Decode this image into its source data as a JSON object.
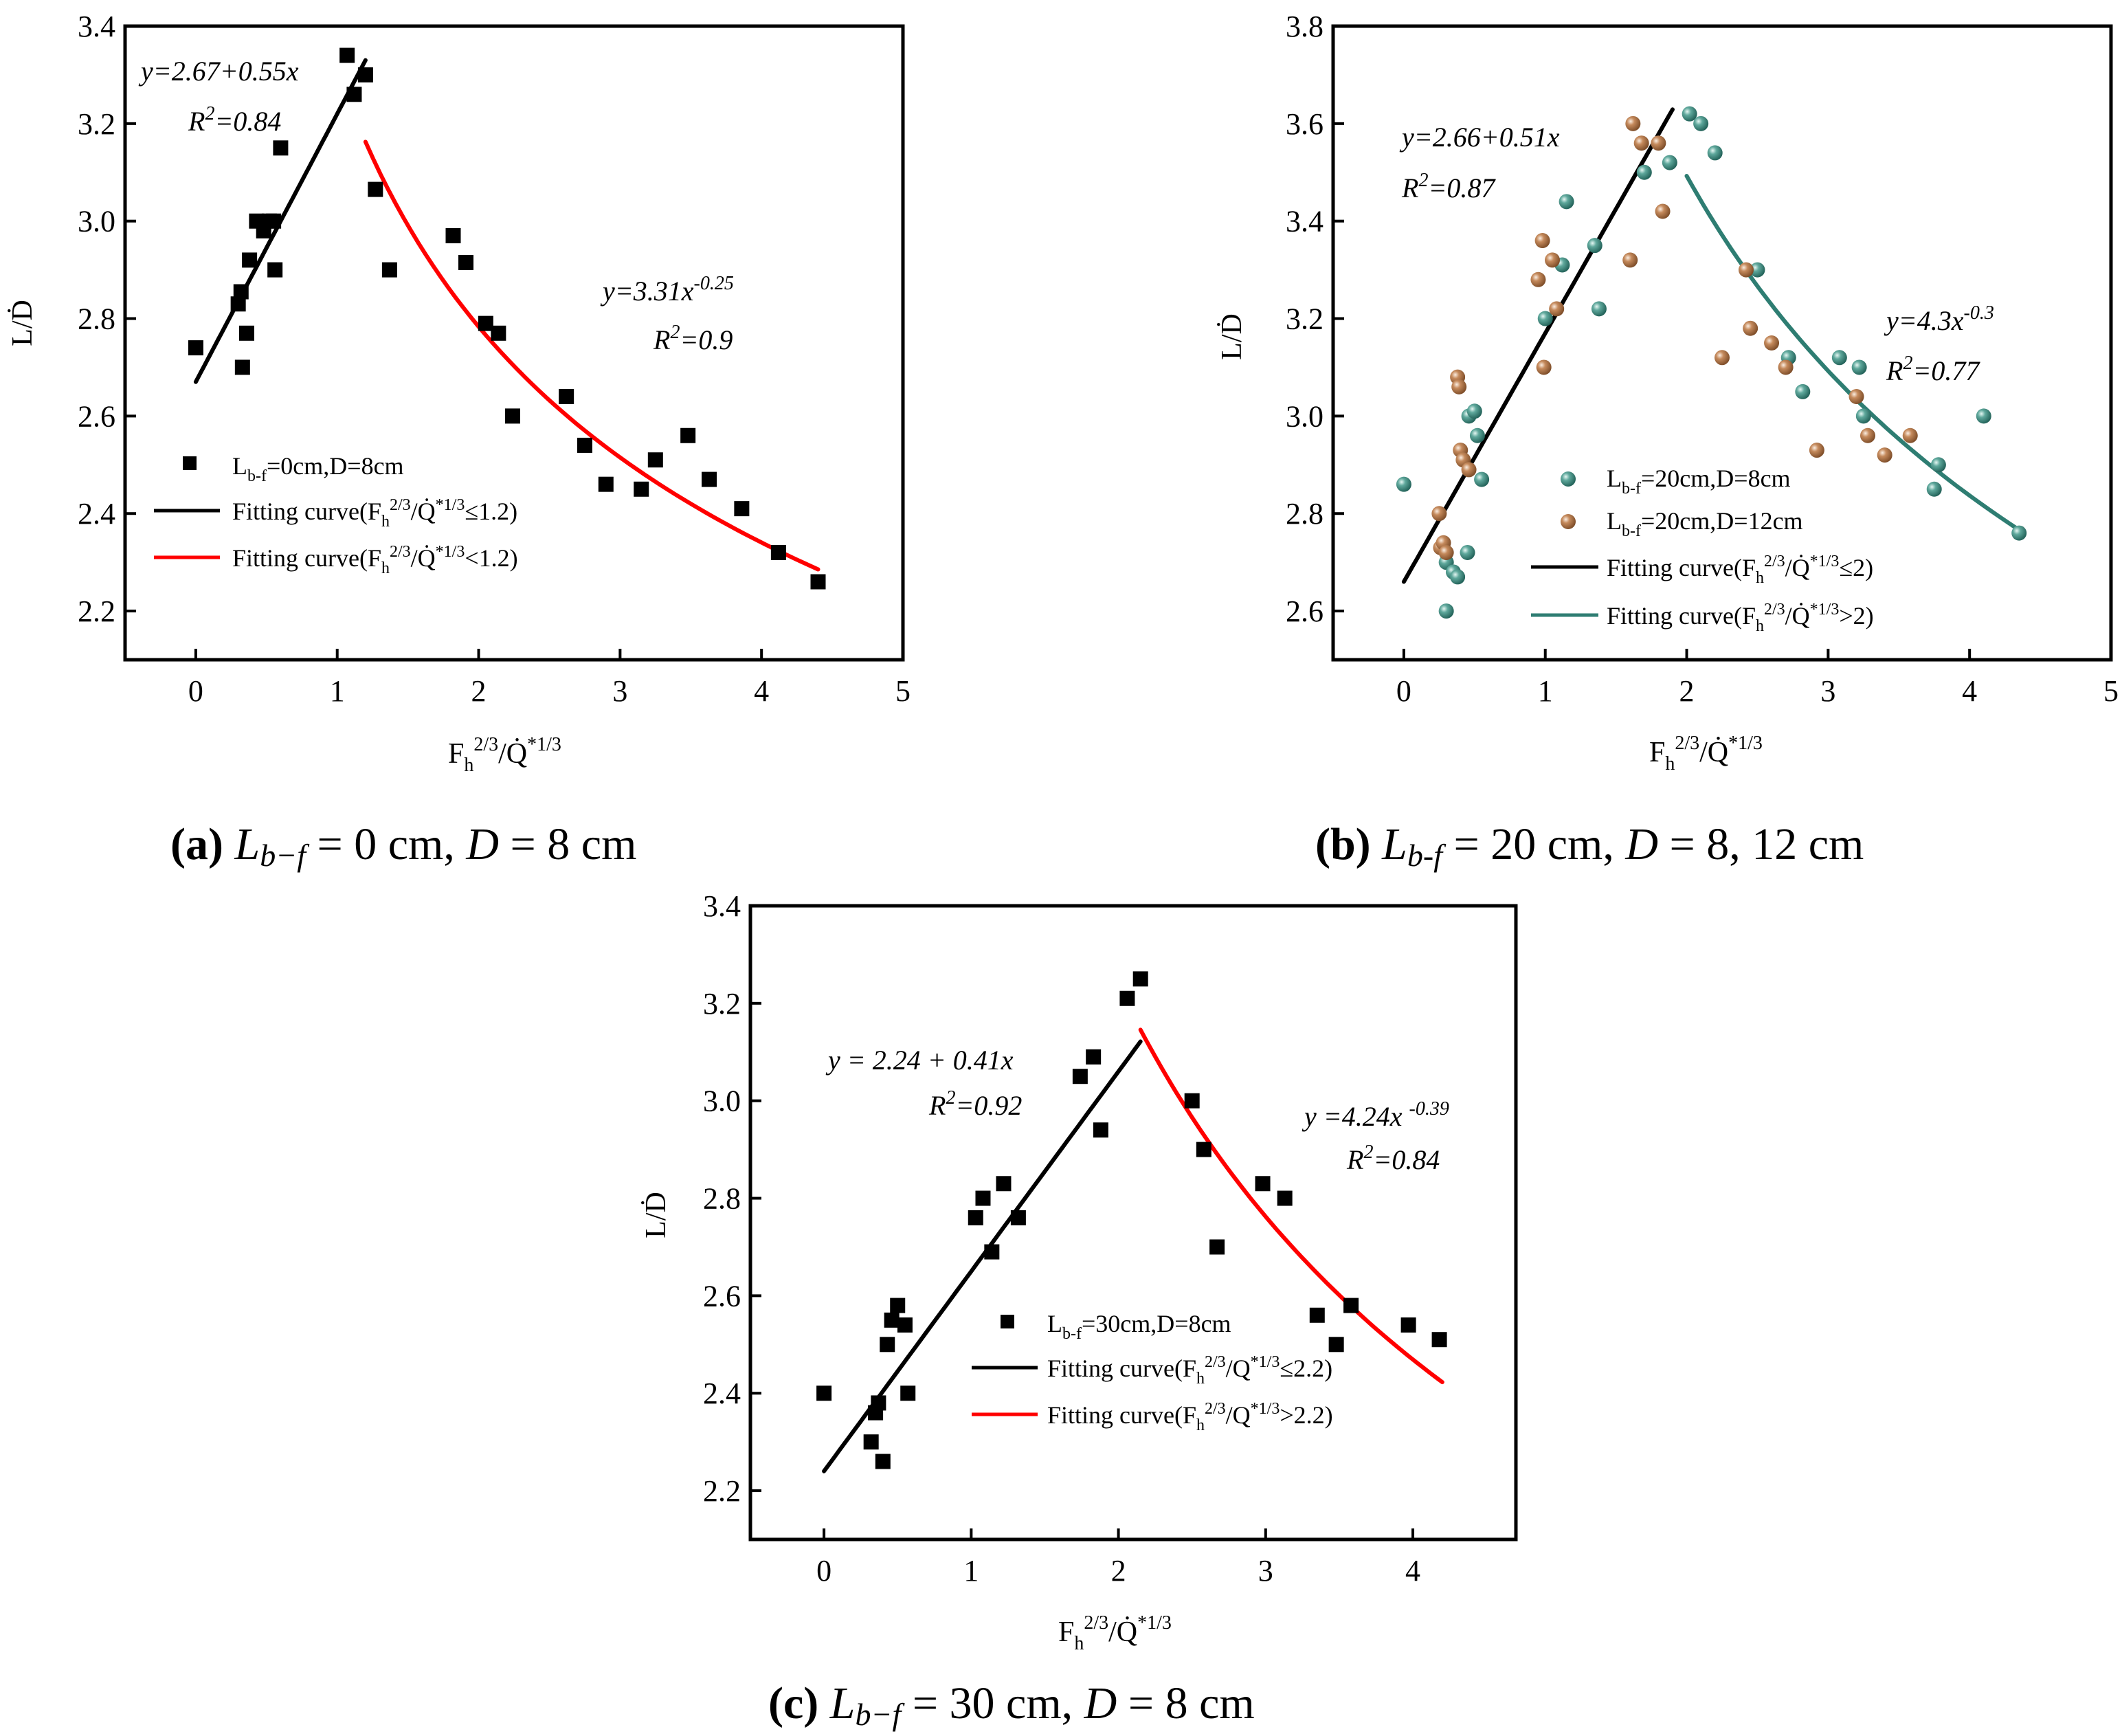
{
  "chart_data": [
    {
      "id": "a",
      "type": "scatter",
      "xlabel": "F_h^{2/3}/Q̇^{*1/3}",
      "ylabel": "L/Ḋ",
      "xlim": [
        -0.5,
        5
      ],
      "ylim": [
        2.1,
        3.4
      ],
      "xticks": [
        0,
        1,
        2,
        3,
        4,
        5
      ],
      "yticks": [
        2.2,
        2.4,
        2.6,
        2.8,
        3.0,
        3.2,
        3.4
      ],
      "xtick_labels": [
        "0",
        "1",
        "2",
        "3",
        "4",
        "5"
      ],
      "ytick_labels": [
        "2.2",
        "2.4",
        "2.6",
        "2.8",
        "3.0",
        "3.2",
        "3.4"
      ],
      "series": [
        {
          "name": "L_b-f=0cm,D=8cm",
          "kind": "scatter",
          "marker": "square",
          "color": "#000000",
          "points": [
            [
              0,
              2.74
            ],
            [
              0.3,
              2.83
            ],
            [
              0.32,
              2.855
            ],
            [
              0.33,
              2.7
            ],
            [
              0.36,
              2.77
            ],
            [
              0.38,
              2.92
            ],
            [
              0.43,
              3.0
            ],
            [
              0.48,
              2.98
            ],
            [
              0.52,
              3.0
            ],
            [
              0.55,
              3.0
            ],
            [
              0.56,
              2.9
            ],
            [
              0.6,
              3.15
            ],
            [
              1.07,
              3.34
            ],
            [
              1.12,
              3.26
            ],
            [
              1.2,
              3.3
            ],
            [
              1.27,
              3.065
            ],
            [
              1.37,
              2.9
            ],
            [
              1.82,
              2.97
            ],
            [
              1.91,
              2.915
            ],
            [
              2.05,
              2.79
            ],
            [
              2.14,
              2.77
            ],
            [
              2.24,
              2.6
            ],
            [
              2.62,
              2.64
            ],
            [
              2.75,
              2.54
            ],
            [
              2.9,
              2.46
            ],
            [
              3.15,
              2.45
            ],
            [
              3.25,
              2.51
            ],
            [
              3.48,
              2.56
            ],
            [
              3.63,
              2.47
            ],
            [
              3.86,
              2.41
            ],
            [
              4.12,
              2.32
            ],
            [
              4.4,
              2.26
            ]
          ]
        },
        {
          "name": "Fitting curve(F_h^{2/3}/Q̇^{*1/3}≤1.2)",
          "kind": "linear",
          "a": 2.67,
          "b": 0.55,
          "xrange": [
            0,
            1.2
          ],
          "color": "#000000"
        },
        {
          "name": "Fitting curve(F_h^{2/3}/Q̇^{*1/3}<1.2)",
          "kind": "power",
          "a": 3.31,
          "b": -0.25,
          "xrange": [
            1.2,
            4.4
          ],
          "color": "#ff0000"
        }
      ],
      "annotations": [
        {
          "equation": "y=2.67+0.55x",
          "r2_prefix": "R",
          "r2_value": "=0.84"
        },
        {
          "equation_base": "y=3.31x",
          "equation_exp": "-0.25",
          "r2_prefix": "R",
          "r2_value": "=0.9"
        }
      ],
      "legend": [
        {
          "label": "L",
          "sub": "b-f",
          "rest": "=0cm,D=8cm"
        },
        {
          "label": "Fitting curve(F",
          "sub": "h",
          "sup": "2/3",
          "mid": "/Q̇",
          "sup2": "*1/3",
          "rest": "≤1.2)"
        },
        {
          "label": "Fitting curve(F",
          "sub": "h",
          "sup": "2/3",
          "mid": "/Q̇",
          "sup2": "*1/3",
          "rest": "<1.2)"
        }
      ],
      "caption": {
        "tag": "(a)",
        "text_before": "L",
        "sub": "b−f",
        "text_after": " = 0 cm, ",
        "var": "D",
        "text_end": " = 8 cm"
      }
    },
    {
      "id": "b",
      "type": "scatter",
      "xlabel": "F_h^{2/3}/Q̇^{*1/3}",
      "ylabel": "L/Ḋ",
      "xlim": [
        -0.5,
        5
      ],
      "ylim": [
        2.5,
        3.8
      ],
      "xticks": [
        0,
        1,
        2,
        3,
        4,
        5
      ],
      "yticks": [
        2.6,
        2.8,
        3.0,
        3.2,
        3.4,
        3.6,
        3.8
      ],
      "xtick_labels": [
        "0",
        "1",
        "2",
        "3",
        "4",
        "5"
      ],
      "ytick_labels": [
        "2.6",
        "2.8",
        "3.0",
        "3.2",
        "3.4",
        "3.6",
        "3.8"
      ],
      "series": [
        {
          "name": "L_b-f=20cm,D=8cm",
          "kind": "scatter",
          "marker": "ball",
          "color": "#2e7d72",
          "points": [
            [
              0,
              2.86
            ],
            [
              0.3,
              2.6
            ],
            [
              0.3,
              2.7
            ],
            [
              0.35,
              2.68
            ],
            [
              0.38,
              2.67
            ],
            [
              0.45,
              2.72
            ],
            [
              0.46,
              3.0
            ],
            [
              0.5,
              3.01
            ],
            [
              0.52,
              2.96
            ],
            [
              0.55,
              2.87
            ],
            [
              1.0,
              3.2
            ],
            [
              1.12,
              3.31
            ],
            [
              1.15,
              3.44
            ],
            [
              1.35,
              3.35
            ],
            [
              1.38,
              3.22
            ],
            [
              1.7,
              3.5
            ],
            [
              1.88,
              3.52
            ],
            [
              2.02,
              3.62
            ],
            [
              2.1,
              3.6
            ],
            [
              2.2,
              3.54
            ],
            [
              2.5,
              3.3
            ],
            [
              2.72,
              3.12
            ],
            [
              2.82,
              3.05
            ],
            [
              3.08,
              3.12
            ],
            [
              3.22,
              3.1
            ],
            [
              3.25,
              3.0
            ],
            [
              3.75,
              2.85
            ],
            [
              3.78,
              2.9
            ],
            [
              4.1,
              3.0
            ],
            [
              4.35,
              2.76
            ]
          ]
        },
        {
          "name": "L_b-f=20cm,D=12cm",
          "kind": "scatter",
          "marker": "ball",
          "color": "#a06a42",
          "points": [
            [
              0.25,
              2.8
            ],
            [
              0.26,
              2.73
            ],
            [
              0.28,
              2.74
            ],
            [
              0.3,
              2.72
            ],
            [
              0.38,
              3.08
            ],
            [
              0.39,
              3.06
            ],
            [
              0.4,
              2.93
            ],
            [
              0.42,
              2.91
            ],
            [
              0.46,
              2.89
            ],
            [
              0.95,
              3.28
            ],
            [
              0.98,
              3.36
            ],
            [
              0.99,
              3.1
            ],
            [
              1.05,
              3.32
            ],
            [
              1.08,
              3.22
            ],
            [
              1.6,
              3.32
            ],
            [
              1.62,
              3.6
            ],
            [
              1.68,
              3.56
            ],
            [
              1.8,
              3.56
            ],
            [
              1.83,
              3.42
            ],
            [
              2.25,
              3.12
            ],
            [
              2.42,
              3.3
            ],
            [
              2.45,
              3.18
            ],
            [
              2.6,
              3.15
            ],
            [
              2.7,
              3.1
            ],
            [
              2.92,
              2.93
            ],
            [
              3.2,
              3.04
            ],
            [
              3.28,
              2.96
            ],
            [
              3.4,
              2.92
            ],
            [
              3.58,
              2.96
            ]
          ]
        },
        {
          "name": "Fitting curve(F_h^{2/3}/Q̇^{*1/3}≤2)",
          "kind": "linear",
          "a": 2.66,
          "b": 0.51,
          "xrange": [
            0,
            1.9
          ],
          "color": "#000000"
        },
        {
          "name": "Fitting curve(F_h^{2/3}/Q̇^{*1/3}>2)",
          "kind": "power",
          "a": 4.3,
          "b": -0.3,
          "xrange": [
            2.0,
            4.35
          ],
          "color": "#2e7d72"
        }
      ],
      "annotations": [
        {
          "equation": "y=2.66+0.51x",
          "r2_prefix": "R",
          "r2_value": "=0.87"
        },
        {
          "equation_base": "y=4.3x",
          "equation_exp": "-0.3",
          "r2_prefix": "R",
          "r2_value": "=0.77"
        }
      ],
      "legend": [
        {
          "label": "L",
          "sub": "b-f",
          "rest": "=20cm,D=8cm"
        },
        {
          "label": "L",
          "sub": "b-f",
          "rest": "=20cm,D=12cm"
        },
        {
          "label": "Fitting curve(F",
          "sub": "h",
          "sup": "2/3",
          "mid": "/Q̇",
          "sup2": "*1/3",
          "rest": "≤2)"
        },
        {
          "label": "Fitting curve(F",
          "sub": "h",
          "sup": "2/3",
          "mid": "/Q̇",
          "sup2": "*1/3",
          "rest": ">2)"
        }
      ],
      "caption": {
        "tag": "(b)",
        "text_before": "L",
        "sub": "b-f",
        "text_after": " = 20 cm, ",
        "var": "D",
        "text_end": " = 8, 12 cm"
      }
    },
    {
      "id": "c",
      "type": "scatter",
      "xlabel": "F_h^{2/3}/Q̇^{*1/3}",
      "ylabel": "L/Ḋ",
      "xlim": [
        -0.5,
        4.7
      ],
      "ylim": [
        2.1,
        3.4
      ],
      "xticks": [
        0,
        1,
        2,
        3,
        4
      ],
      "yticks": [
        2.2,
        2.4,
        2.6,
        2.8,
        3.0,
        3.2,
        3.4
      ],
      "xtick_labels": [
        "0",
        "1",
        "2",
        "3",
        "4"
      ],
      "ytick_labels": [
        "2.2",
        "2.4",
        "2.6",
        "2.8",
        "3.0",
        "3.2",
        "3.4"
      ],
      "series": [
        {
          "name": "L_b-f=30cm,D=8cm",
          "kind": "scatter",
          "marker": "square",
          "color": "#000000",
          "points": [
            [
              0,
              2.4
            ],
            [
              0.32,
              2.3
            ],
            [
              0.35,
              2.36
            ],
            [
              0.37,
              2.38
            ],
            [
              0.4,
              2.26
            ],
            [
              0.43,
              2.5
            ],
            [
              0.46,
              2.55
            ],
            [
              0.5,
              2.58
            ],
            [
              0.55,
              2.54
            ],
            [
              0.57,
              2.4
            ],
            [
              1.03,
              2.76
            ],
            [
              1.08,
              2.8
            ],
            [
              1.14,
              2.69
            ],
            [
              1.22,
              2.83
            ],
            [
              1.32,
              2.76
            ],
            [
              1.74,
              3.05
            ],
            [
              1.83,
              3.09
            ],
            [
              1.88,
              2.94
            ],
            [
              2.06,
              3.21
            ],
            [
              2.15,
              3.25
            ],
            [
              2.5,
              3.0
            ],
            [
              2.58,
              2.9
            ],
            [
              2.67,
              2.7
            ],
            [
              2.98,
              2.83
            ],
            [
              3.13,
              2.8
            ],
            [
              3.35,
              2.56
            ],
            [
              3.48,
              2.5
            ],
            [
              3.58,
              2.58
            ],
            [
              3.97,
              2.54
            ],
            [
              4.18,
              2.51
            ]
          ]
        },
        {
          "name": "Fitting curve(F_h^{2/3}/Q^{*1/3}≤2.2)",
          "kind": "linear",
          "a": 2.24,
          "b": 0.41,
          "xrange": [
            0,
            2.15
          ],
          "color": "#000000"
        },
        {
          "name": "Fitting curve(F_h^{2/3}/Q^{*1/3}>2.2)",
          "kind": "power",
          "a": 4.24,
          "b": -0.39,
          "xrange": [
            2.15,
            4.2
          ],
          "color": "#ff0000"
        }
      ],
      "annotations": [
        {
          "equation": "y = 2.24 + 0.41x",
          "r2_prefix": "R",
          "r2_value": "=0.92"
        },
        {
          "equation_base": "y =4.24x ",
          "equation_exp": "-0.39",
          "r2_prefix": "R",
          "r2_value": "=0.84"
        }
      ],
      "legend": [
        {
          "label": "L",
          "sub": "b-f",
          "rest": "=30cm,D=8cm"
        },
        {
          "label": "Fitting curve(F",
          "sub": "h",
          "sup": "2/3",
          "mid": "/Q",
          "sup2": "*1/3",
          "rest": "≤2.2)"
        },
        {
          "label": "Fitting curve(F",
          "sub": "h",
          "sup": "2/3",
          "mid": "/Q",
          "sup2": "*1/3",
          "rest": ">2.2)"
        }
      ],
      "caption": {
        "tag": "(c)",
        "text_before": "L",
        "sub": "b−f",
        "text_after": " = 30 cm, ",
        "var": "D",
        "text_end": " = 8 cm"
      }
    }
  ],
  "axis_text": {
    "y_main": "L/Ḋ",
    "x_F": "F",
    "x_sub": "h",
    "x_sup": "2/3",
    "x_slash": "/Q̇",
    "x_sup2": "*1/3",
    "r2_sup": "2"
  }
}
